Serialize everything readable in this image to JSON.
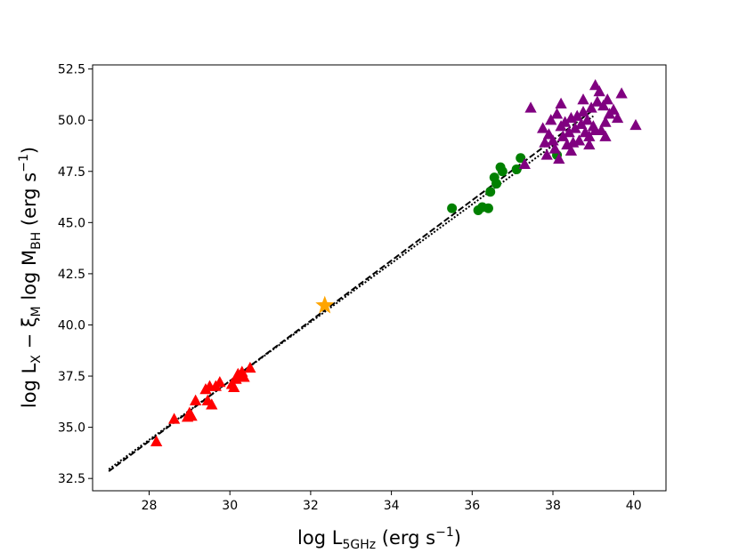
{
  "chart_data": {
    "type": "scatter",
    "xlabel": {
      "main": "log L",
      "sub": "5GHz",
      "unit": "(erg s",
      "sup": "−1",
      "close": ")"
    },
    "ylabel": {
      "part1": "log L",
      "sub1": "X",
      "part2": " − ξ",
      "sub2": "M",
      "part3": " log M",
      "sub3": "BH",
      "unit": " (erg s",
      "sup": "−1",
      "close": ")"
    },
    "xlim": [
      26.6,
      40.8
    ],
    "ylim": [
      31.9,
      52.7
    ],
    "xticks": [
      28,
      30,
      32,
      34,
      36,
      38,
      40
    ],
    "xtick_labels": [
      "28",
      "30",
      "32",
      "34",
      "36",
      "38",
      "40"
    ],
    "yticks": [
      32.5,
      35.0,
      37.5,
      40.0,
      42.5,
      45.0,
      47.5,
      50.0,
      52.5
    ],
    "ytick_labels": [
      "32.5",
      "35.0",
      "37.5",
      "40.0",
      "42.5",
      "45.0",
      "47.5",
      "50.0",
      "52.5"
    ],
    "grid": false,
    "fit_lines": [
      {
        "style": "dashed",
        "color": "#000000",
        "points": [
          [
            27.0,
            32.85
          ],
          [
            39.0,
            50.5
          ]
        ]
      },
      {
        "style": "dotted",
        "color": "#000000",
        "points": [
          [
            27.0,
            32.95
          ],
          [
            39.0,
            50.2
          ]
        ]
      }
    ],
    "series": [
      {
        "marker": "triangle",
        "color": "#ff0000",
        "points": [
          [
            28.18,
            34.3
          ],
          [
            28.62,
            35.4
          ],
          [
            28.95,
            35.5
          ],
          [
            29.0,
            35.7
          ],
          [
            29.05,
            35.55
          ],
          [
            29.15,
            36.3
          ],
          [
            29.4,
            36.85
          ],
          [
            29.45,
            36.3
          ],
          [
            29.5,
            37.0
          ],
          [
            29.55,
            36.1
          ],
          [
            29.65,
            37.0
          ],
          [
            29.75,
            37.2
          ],
          [
            30.05,
            37.1
          ],
          [
            30.1,
            36.95
          ],
          [
            30.15,
            37.35
          ],
          [
            30.2,
            37.6
          ],
          [
            30.25,
            37.5
          ],
          [
            30.3,
            37.7
          ],
          [
            30.35,
            37.45
          ],
          [
            30.5,
            37.9
          ]
        ]
      },
      {
        "marker": "star",
        "color": "#ffa500",
        "points": [
          [
            32.35,
            40.95
          ]
        ]
      },
      {
        "marker": "circle",
        "color": "#008000",
        "points": [
          [
            35.5,
            45.7
          ],
          [
            36.15,
            45.6
          ],
          [
            36.25,
            45.75
          ],
          [
            36.4,
            45.7
          ],
          [
            36.45,
            46.5
          ],
          [
            36.55,
            47.2
          ],
          [
            36.6,
            46.9
          ],
          [
            36.7,
            47.7
          ],
          [
            36.75,
            47.5
          ],
          [
            37.1,
            47.6
          ],
          [
            37.2,
            48.15
          ],
          [
            38.1,
            48.3
          ]
        ]
      },
      {
        "marker": "triangle",
        "color": "#800080",
        "points": [
          [
            37.3,
            47.85
          ],
          [
            37.45,
            50.6
          ],
          [
            37.75,
            49.6
          ],
          [
            37.8,
            48.9
          ],
          [
            37.85,
            48.3
          ],
          [
            37.9,
            49.3
          ],
          [
            37.95,
            50.0
          ],
          [
            38.0,
            49.0
          ],
          [
            38.05,
            48.6
          ],
          [
            38.1,
            50.3
          ],
          [
            38.15,
            48.1
          ],
          [
            38.2,
            49.7
          ],
          [
            38.25,
            49.2
          ],
          [
            38.3,
            49.9
          ],
          [
            38.35,
            48.8
          ],
          [
            38.4,
            49.4
          ],
          [
            38.45,
            50.1
          ],
          [
            38.5,
            48.9
          ],
          [
            38.55,
            49.6
          ],
          [
            38.6,
            50.2
          ],
          [
            38.65,
            49.0
          ],
          [
            38.7,
            49.8
          ],
          [
            38.75,
            50.4
          ],
          [
            38.8,
            49.4
          ],
          [
            38.85,
            50.0
          ],
          [
            38.9,
            49.2
          ],
          [
            38.95,
            50.6
          ],
          [
            39.0,
            49.7
          ],
          [
            39.05,
            51.7
          ],
          [
            39.1,
            50.9
          ],
          [
            39.15,
            51.4
          ],
          [
            39.2,
            49.5
          ],
          [
            39.25,
            50.7
          ],
          [
            39.3,
            49.9
          ],
          [
            39.35,
            51.0
          ],
          [
            39.4,
            50.3
          ],
          [
            39.5,
            50.5
          ],
          [
            39.6,
            50.1
          ],
          [
            39.7,
            51.3
          ],
          [
            40.05,
            49.75
          ],
          [
            38.45,
            48.5
          ],
          [
            38.9,
            48.8
          ],
          [
            39.3,
            49.2
          ],
          [
            38.2,
            50.8
          ],
          [
            38.75,
            51.0
          ],
          [
            39.05,
            49.5
          ]
        ]
      }
    ]
  }
}
